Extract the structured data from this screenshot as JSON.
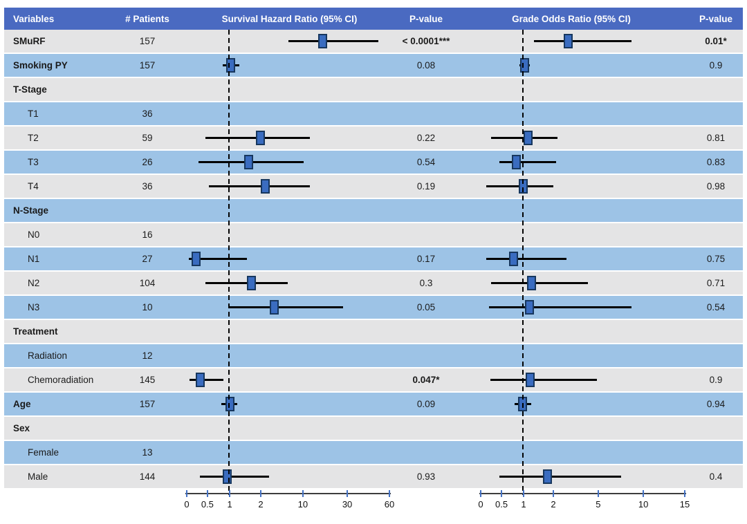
{
  "table": {
    "headers": {
      "variables": "Variables",
      "patients": "# Patients",
      "survival": "Survival Hazard Ratio (95% CI)",
      "pvalue1": "P-value",
      "grade": "Grade Odds Ratio (95% CI)",
      "pvalue2": "P-value"
    }
  },
  "colors": {
    "header_bg": "#4a6ac1",
    "header_text": "#ffffff",
    "row_gray": "#e4e4e5",
    "row_blue": "#9dc3e6",
    "marker_fill": "#3a6cc0",
    "marker_border": "#17375e",
    "ci_line": "#000000",
    "axis_tick": "#4472c4",
    "axis_line": "#3d3d3d",
    "reference_line": "#000000"
  },
  "chart_data": {
    "type": "forest",
    "title": "Forest plot of Survival Hazard Ratios and Grade Odds Ratios with 95% CI",
    "reference_value": 1,
    "axes": {
      "survival": {
        "label": "Survival Hazard Ratio (95% CI)",
        "scale": "custom",
        "ticks": [
          {
            "v": 0,
            "f": 0.0,
            "label": "0"
          },
          {
            "v": 0.5,
            "f": 0.102,
            "label": "0.5"
          },
          {
            "v": 1,
            "f": 0.212,
            "label": "1"
          },
          {
            "v": 2,
            "f": 0.365,
            "label": "2"
          },
          {
            "v": 10,
            "f": 0.573,
            "label": "10"
          },
          {
            "v": 30,
            "f": 0.792,
            "label": "30"
          },
          {
            "v": 60,
            "f": 1.0,
            "label": "60"
          }
        ]
      },
      "grade": {
        "label": "Grade Odds Ratio (95% CI)",
        "scale": "custom",
        "ticks": [
          {
            "v": 0,
            "f": 0.0,
            "label": "0"
          },
          {
            "v": 0.5,
            "f": 0.102,
            "label": "0.5"
          },
          {
            "v": 1,
            "f": 0.21,
            "label": "1"
          },
          {
            "v": 2,
            "f": 0.356,
            "label": "2"
          },
          {
            "v": 5,
            "f": 0.576,
            "label": "5"
          },
          {
            "v": 10,
            "f": 0.797,
            "label": "10"
          },
          {
            "v": 15,
            "f": 1.0,
            "label": "15"
          }
        ]
      }
    },
    "rows": [
      {
        "label": "SMuRF",
        "patients": "157",
        "surv": {
          "lo": 7.2,
          "mid": 19,
          "hi": 52
        },
        "p_surv": "< 0.0001***",
        "grade": {
          "lo": 1.35,
          "mid": 3.0,
          "hi": 8.7
        },
        "p_grade": "0.01*"
      },
      {
        "label": "Smoking PY",
        "patients": "157",
        "surv": {
          "lo": 0.84,
          "mid": 1.04,
          "hi": 1.31
        },
        "p_surv": "0.08",
        "grade": {
          "lo": 0.9,
          "mid": 1.03,
          "hi": 1.2
        },
        "p_grade": "0.9"
      },
      {
        "label": "T-Stage"
      },
      {
        "label": "T1",
        "patients": "36"
      },
      {
        "label": "T2",
        "patients": "59",
        "surv": {
          "lo": 0.45,
          "mid": 2.0,
          "hi": 13
        },
        "p_surv": "0.22",
        "grade": {
          "lo": 0.25,
          "mid": 1.16,
          "hi": 2.3
        },
        "p_grade": "0.81"
      },
      {
        "label": "T3",
        "patients": "26",
        "surv": {
          "lo": 0.28,
          "mid": 1.6,
          "hi": 10.5
        },
        "p_surv": "0.54",
        "grade": {
          "lo": 0.45,
          "mid": 0.84,
          "hi": 2.2
        },
        "p_grade": "0.83"
      },
      {
        "label": "T4",
        "patients": "36",
        "surv": {
          "lo": 0.53,
          "mid": 2.9,
          "hi": 13
        },
        "p_surv": "0.19",
        "grade": {
          "lo": 0.13,
          "mid": 1.0,
          "hi": 2.0
        },
        "p_grade": "0.98"
      },
      {
        "label": "N-Stage"
      },
      {
        "label": "N0",
        "patients": "16"
      },
      {
        "label": "N1",
        "patients": "27",
        "surv": {
          "lo": 0.05,
          "mid": 0.23,
          "hi": 1.55
        },
        "p_surv": "0.17",
        "grade": {
          "lo": 0.13,
          "mid": 0.77,
          "hi": 2.9
        },
        "p_grade": "0.75"
      },
      {
        "label": "N2",
        "patients": "104",
        "surv": {
          "lo": 0.45,
          "mid": 1.7,
          "hi": 7.1
        },
        "p_surv": "0.3",
        "grade": {
          "lo": 0.25,
          "mid": 1.26,
          "hi": 4.3
        },
        "p_grade": "0.71"
      },
      {
        "label": "N3",
        "patients": "10",
        "surv": {
          "lo": 1.0,
          "mid": 4.6,
          "hi": 28
        },
        "p_surv": "0.05",
        "grade": {
          "lo": 0.2,
          "mid": 1.2,
          "hi": 8.7
        },
        "p_grade": "0.54"
      },
      {
        "label": "Treatment"
      },
      {
        "label": "Radiation",
        "patients": "12"
      },
      {
        "label": "Chemoradiation",
        "patients": "145",
        "surv": {
          "lo": 0.06,
          "mid": 0.32,
          "hi": 0.86
        },
        "p_surv": "0.047*",
        "grade": {
          "lo": 0.23,
          "mid": 1.23,
          "hi": 4.9
        },
        "p_grade": "0.9"
      },
      {
        "label": "Age",
        "patients": "157",
        "surv": {
          "lo": 0.81,
          "mid": 1.0,
          "hi": 1.24
        },
        "p_surv": "0.09",
        "grade": {
          "lo": 0.8,
          "mid": 0.98,
          "hi": 1.25
        },
        "p_grade": "0.94"
      },
      {
        "label": "Sex"
      },
      {
        "label": "Female",
        "patients": "13"
      },
      {
        "label": "Male",
        "patients": "144",
        "surv": {
          "lo": 0.32,
          "mid": 0.94,
          "hi": 3.6
        },
        "p_surv": "0.93",
        "grade": {
          "lo": 0.45,
          "mid": 1.8,
          "hi": 7.5
        },
        "p_grade": "0.4"
      }
    ]
  }
}
